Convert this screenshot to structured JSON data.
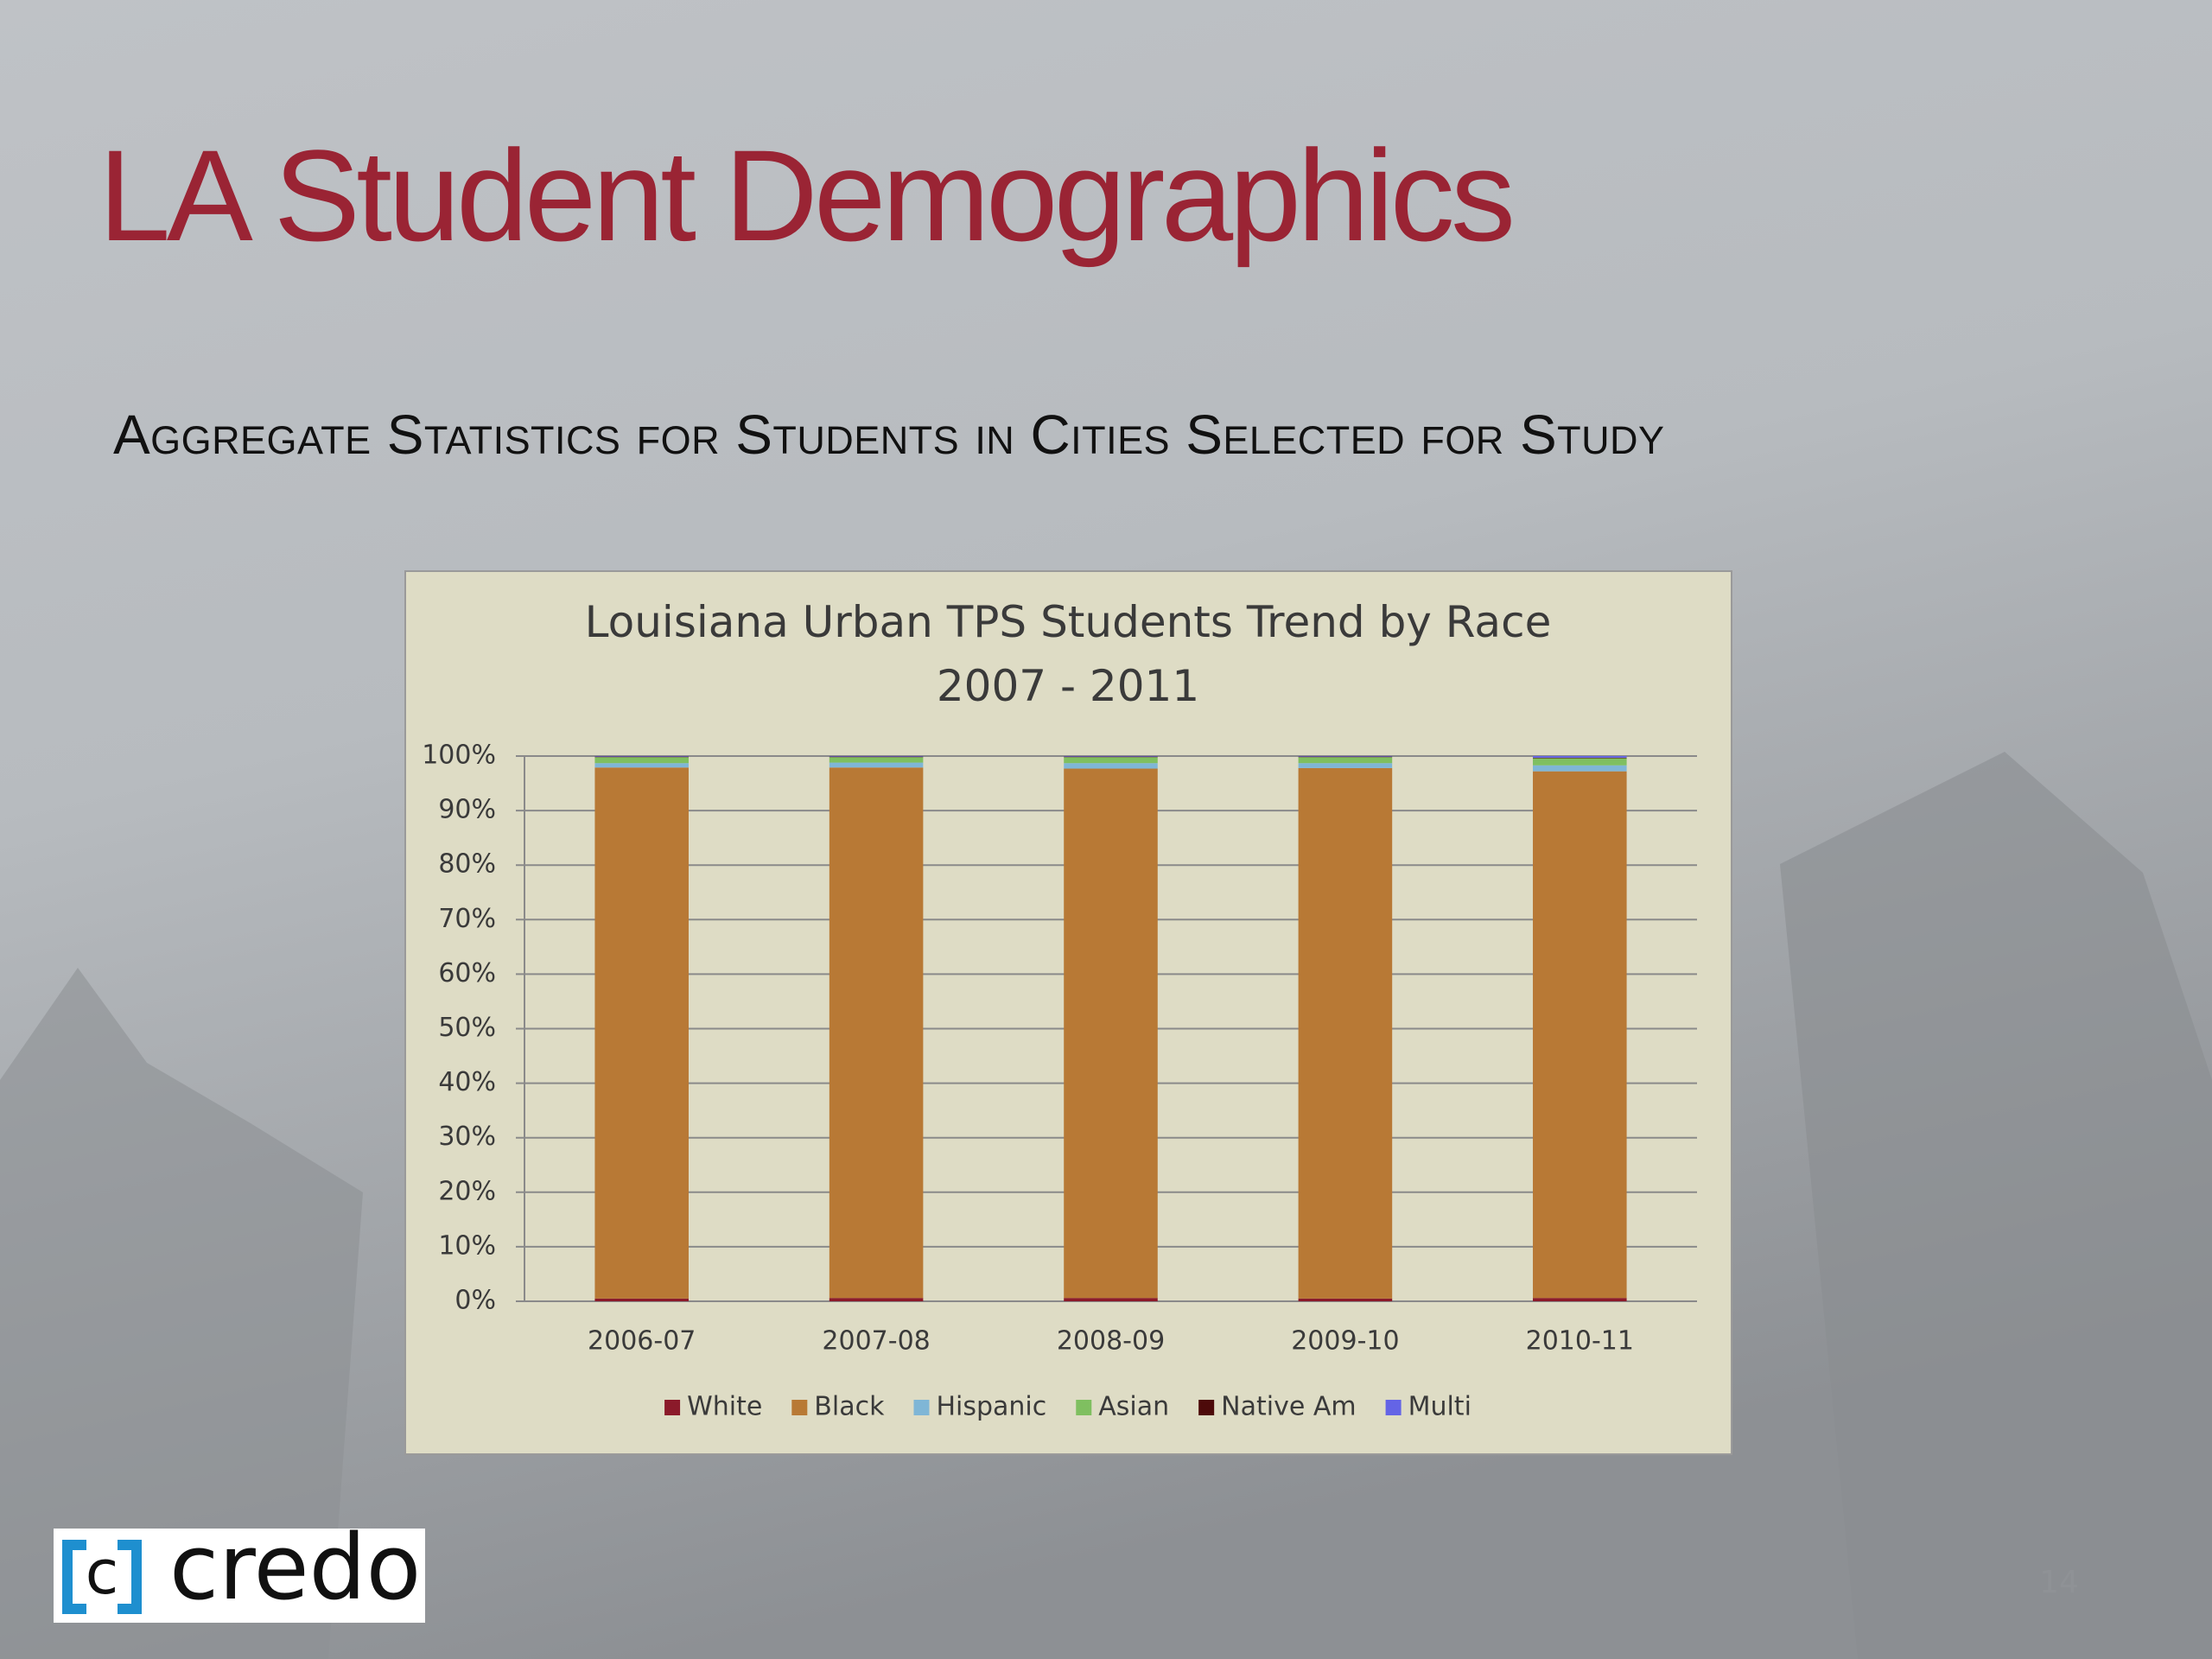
{
  "slide": {
    "title": "LA Student Demographics",
    "subtitle": "Aggregate Statistics for Students in Cities Selected for Study",
    "logo": "credo",
    "page_number": 14
  },
  "chart_data": {
    "type": "stacked_bar",
    "title": [
      "Louisiana Urban TPS Students Trend by Race",
      "2007 - 2011"
    ],
    "categories": [
      "2006-07",
      "2007-08",
      "2008-09",
      "2009-10",
      "2010-11"
    ],
    "series": [
      {
        "name": "White",
        "color": "#8b1a2a",
        "values": [
          0.5,
          0.6,
          0.6,
          0.5,
          0.6
        ]
      },
      {
        "name": "Black",
        "color": "#b87935",
        "values": [
          97.4,
          97.3,
          97.1,
          97.3,
          96.6
        ]
      },
      {
        "name": "Hispanic",
        "color": "#7fb6d6",
        "values": [
          0.8,
          0.9,
          1.0,
          0.9,
          1.1
        ]
      },
      {
        "name": "Asian",
        "color": "#7fbf60",
        "values": [
          1.1,
          1.0,
          1.1,
          1.1,
          1.3
        ]
      },
      {
        "name": "Native Am",
        "color": "#4d0a0a",
        "values": [
          0.1,
          0.1,
          0.1,
          0.1,
          0.1
        ]
      },
      {
        "name": "Multi",
        "color": "#6464e6",
        "values": [
          0.1,
          0.1,
          0.1,
          0.1,
          0.3
        ]
      }
    ],
    "ylim": [
      0,
      100
    ],
    "yticks": [
      {
        "value": 0,
        "label": "0%"
      },
      {
        "value": 10,
        "label": "10%"
      },
      {
        "value": 20,
        "label": "20%"
      },
      {
        "value": 30,
        "label": "30%"
      },
      {
        "value": 40,
        "label": "40%"
      },
      {
        "value": 50,
        "label": "50%"
      },
      {
        "value": 60,
        "label": "60%"
      },
      {
        "value": 70,
        "label": "70%"
      },
      {
        "value": 80,
        "label": "80%"
      },
      {
        "value": 90,
        "label": "90%"
      },
      {
        "value": 100,
        "label": "100%"
      }
    ],
    "grid": true,
    "legend": "bottom"
  }
}
